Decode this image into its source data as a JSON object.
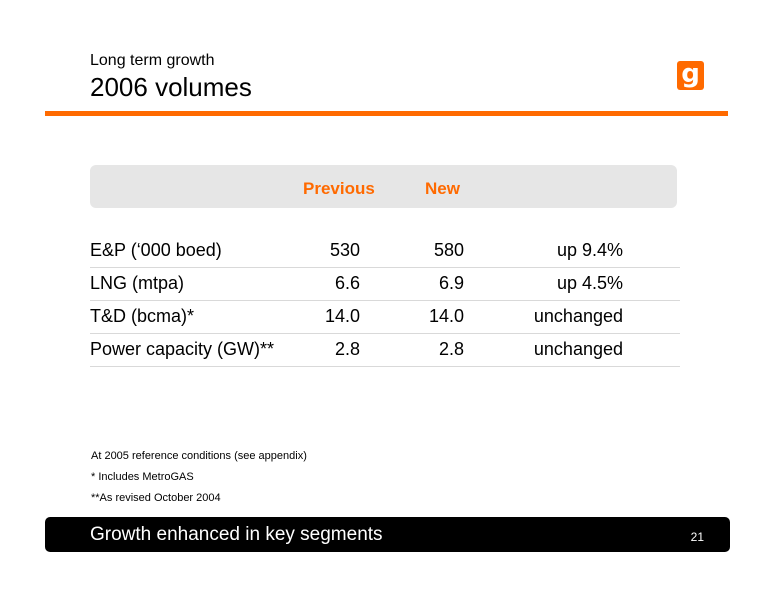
{
  "header": {
    "subtitle": "Long term growth",
    "title": "2006 volumes",
    "logo": "g"
  },
  "table": {
    "columns": [
      "Previous",
      "New"
    ],
    "rows": [
      {
        "label": "E&P (‘000 boed)",
        "previous": "530",
        "new": "580",
        "change": "up 9.4%"
      },
      {
        "label": "LNG (mtpa)",
        "previous": "6.6",
        "new": "6.9",
        "change": "up 4.5%"
      },
      {
        "label": "T&D (bcma)*",
        "previous": "14.0",
        "new": "14.0",
        "change": "unchanged"
      },
      {
        "label": "Power capacity (GW)**",
        "previous": "2.8",
        "new": "2.8",
        "change": "unchanged"
      }
    ]
  },
  "notes": [
    "At 2005 reference conditions (see appendix)",
    "* Includes MetroGAS",
    "**As revised October 2004"
  ],
  "footer": {
    "text": "Growth enhanced in key segments",
    "page": "21"
  },
  "colors": {
    "accent": "#ff6a00",
    "band": "#e6e6e6",
    "footer_bg": "#000000"
  }
}
